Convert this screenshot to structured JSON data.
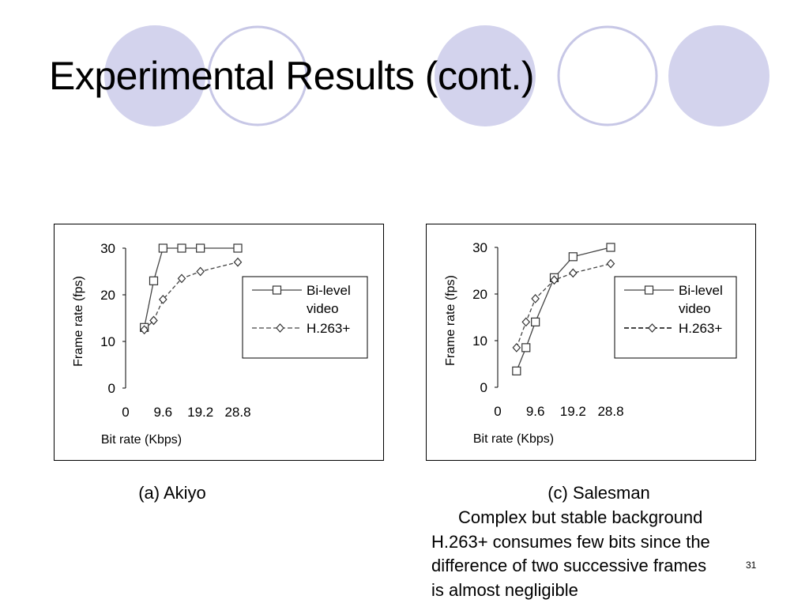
{
  "slide": {
    "title": "Experimental Results (cont.)",
    "slide_number": "31",
    "decoration_colors": {
      "filled": "#d3d3ed",
      "outline": "#c7c7e6"
    }
  },
  "chart_data": [
    {
      "type": "line",
      "caption": "(a) Akiyo",
      "title": "",
      "xlabel": "Bit rate (Kbps)",
      "ylabel": "Frame rate (fps)",
      "xlim": [
        0,
        28.8
      ],
      "ylim": [
        0,
        30
      ],
      "xticks": [
        0,
        9.6,
        19.2,
        28.8
      ],
      "xtick_labels": [
        "0",
        "9.6",
        "19.2",
        "28.8"
      ],
      "yticks": [
        0,
        10,
        20,
        30
      ],
      "ytick_labels": [
        "0",
        "10",
        "20",
        "30"
      ],
      "grid": false,
      "legend_position": "right",
      "series": [
        {
          "name": "Bi-level video",
          "style": "solid",
          "marker": "square",
          "x": [
            4.8,
            7.2,
            9.6,
            14.4,
            19.2,
            28.8
          ],
          "y": [
            13,
            23,
            30,
            30,
            30,
            30
          ]
        },
        {
          "name": "H.263+",
          "style": "dashed",
          "marker": "diamond",
          "x": [
            4.8,
            7.2,
            9.6,
            14.4,
            19.2,
            28.8
          ],
          "y": [
            12.5,
            14.5,
            19,
            23.5,
            25,
            27
          ]
        }
      ]
    },
    {
      "type": "line",
      "caption": "(c) Salesman",
      "title": "",
      "xlabel": "Bit rate (Kbps)",
      "ylabel": "Frame rate (fps)",
      "xlim": [
        0,
        28.8
      ],
      "ylim": [
        0,
        30
      ],
      "xticks": [
        0,
        9.6,
        19.2,
        28.8
      ],
      "xtick_labels": [
        "0",
        "9.6",
        "19.2",
        "28.8"
      ],
      "yticks": [
        0,
        10,
        20,
        30
      ],
      "ytick_labels": [
        "0",
        "10",
        "20",
        "30"
      ],
      "grid": false,
      "legend_position": "right",
      "series": [
        {
          "name": "Bi-level video",
          "style": "solid",
          "marker": "square",
          "x": [
            4.8,
            7.2,
            9.6,
            14.4,
            19.2,
            28.8
          ],
          "y": [
            3.5,
            8.5,
            14,
            23.5,
            28,
            30
          ]
        },
        {
          "name": "H.263+",
          "style": "dashed",
          "marker": "diamond",
          "x": [
            4.8,
            7.2,
            9.6,
            14.4,
            19.2,
            28.8
          ],
          "y": [
            8.5,
            14,
            19,
            23,
            24.5,
            26.5
          ]
        }
      ]
    }
  ],
  "note_lines": [
    "Complex but stable background",
    "H.263+ consumes few bits since the",
    "difference of two successive frames",
    "is almost negligible"
  ]
}
